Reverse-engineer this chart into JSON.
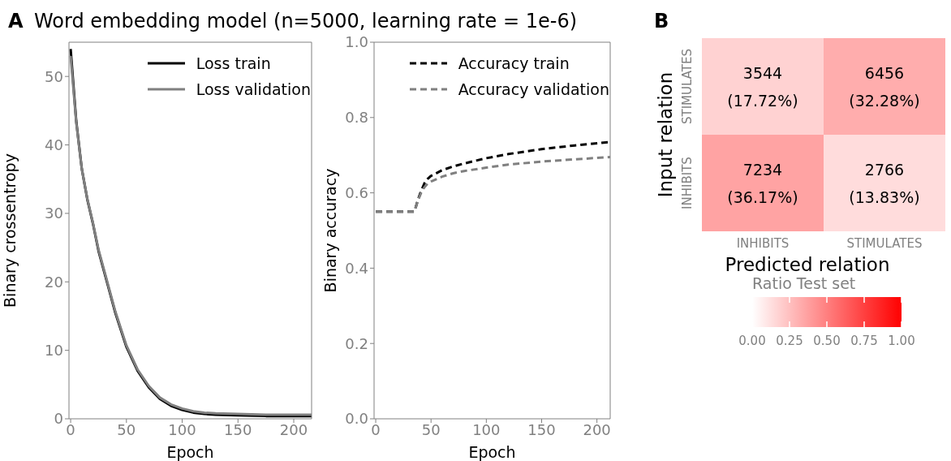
{
  "chart_data": [
    {
      "type": "line",
      "title": "Word embedding model (n=5000, learning rate = 1e-6)",
      "annotations": [
        "A"
      ],
      "xlabel": "Epoch",
      "ylabel": "Binary crossentropy",
      "xlim": [
        -1.5,
        216
      ],
      "ylim": [
        0,
        55
      ],
      "xticks": [
        0,
        50,
        100,
        150,
        200
      ],
      "yticks": [
        0,
        10,
        20,
        30,
        40,
        50
      ],
      "legend": "top right",
      "line_style": "solid",
      "x": [
        0,
        5,
        10,
        15,
        20,
        25,
        30,
        35,
        40,
        50,
        60,
        70,
        80,
        90,
        100,
        110,
        120,
        130,
        150,
        175,
        200,
        216
      ],
      "series": [
        {
          "name": "Loss train",
          "color": "#000000",
          "values": [
            54,
            43.5,
            36.5,
            32,
            28.5,
            24.5,
            21.5,
            18.5,
            15.5,
            10.5,
            7,
            4.6,
            2.9,
            1.9,
            1.3,
            0.9,
            0.7,
            0.6,
            0.5,
            0.4,
            0.4,
            0.4
          ]
        },
        {
          "name": "Loss validation",
          "color": "#808080",
          "values": [
            53,
            43.3,
            36.5,
            32.1,
            28.6,
            24.7,
            21.7,
            18.7,
            15.7,
            10.7,
            7.2,
            4.8,
            3.1,
            2.1,
            1.5,
            1.1,
            0.9,
            0.8,
            0.7,
            0.6,
            0.6,
            0.6
          ]
        }
      ]
    },
    {
      "type": "line",
      "xlabel": "Epoch",
      "ylabel": "Binary accuracy",
      "xlim": [
        -1.5,
        212
      ],
      "ylim": [
        0,
        1
      ],
      "xticks": [
        0,
        50,
        100,
        150,
        200
      ],
      "yticks": [
        {
          "value": 0,
          "label": "0.0"
        },
        {
          "value": 0.2,
          "label": "0.2"
        },
        {
          "value": 0.4,
          "label": "0.4"
        },
        {
          "value": 0.6,
          "label": "0.6"
        },
        {
          "value": 0.8,
          "label": "0.8"
        },
        {
          "value": 1,
          "label": "1.0"
        }
      ],
      "legend": "top right",
      "line_style": "dashed",
      "x": [
        0,
        10,
        20,
        30,
        35,
        38,
        41,
        44,
        47,
        50,
        60,
        70,
        80,
        100,
        120,
        150,
        180,
        212
      ],
      "series": [
        {
          "name": "Accuracy train",
          "color": "#000000",
          "values": [
            0.55,
            0.55,
            0.55,
            0.55,
            0.55,
            0.58,
            0.605,
            0.625,
            0.637,
            0.645,
            0.66,
            0.67,
            0.678,
            0.692,
            0.703,
            0.716,
            0.726,
            0.735
          ]
        },
        {
          "name": "Accuracy validation",
          "color": "#808080",
          "values": [
            0.55,
            0.55,
            0.55,
            0.55,
            0.55,
            0.578,
            0.6,
            0.615,
            0.625,
            0.63,
            0.643,
            0.652,
            0.658,
            0.667,
            0.675,
            0.683,
            0.689,
            0.695
          ]
        }
      ]
    },
    {
      "type": "heatmap",
      "annotations": [
        "B"
      ],
      "xlabel": "Predicted relation",
      "ylabel": "Input relation",
      "clabel": "Ratio Test set",
      "categories": [
        "INHIBITS",
        "STIMULATES"
      ],
      "y_categories": [
        "STIMULATES",
        "INHIBITS"
      ],
      "cells": [
        [
          0.1772,
          0.3228
        ],
        [
          0.3617,
          0.1383
        ]
      ],
      "cell_labels": [
        [
          "3544\n(17.72%)",
          "6456\n(32.28%)"
        ],
        [
          "7234\n(36.17%)",
          "2766\n(13.83%)"
        ]
      ],
      "colors": [
        "#ffffff",
        "#ff0000"
      ],
      "clim": [
        0,
        1
      ],
      "cticks": [
        {
          "value": 0,
          "label": "0.00"
        },
        {
          "value": 0.25,
          "label": "0.25"
        },
        {
          "value": 0.5,
          "label": "0.50"
        },
        {
          "value": 0.75,
          "label": "0.75"
        },
        {
          "value": 1,
          "label": "1.00"
        }
      ]
    }
  ]
}
